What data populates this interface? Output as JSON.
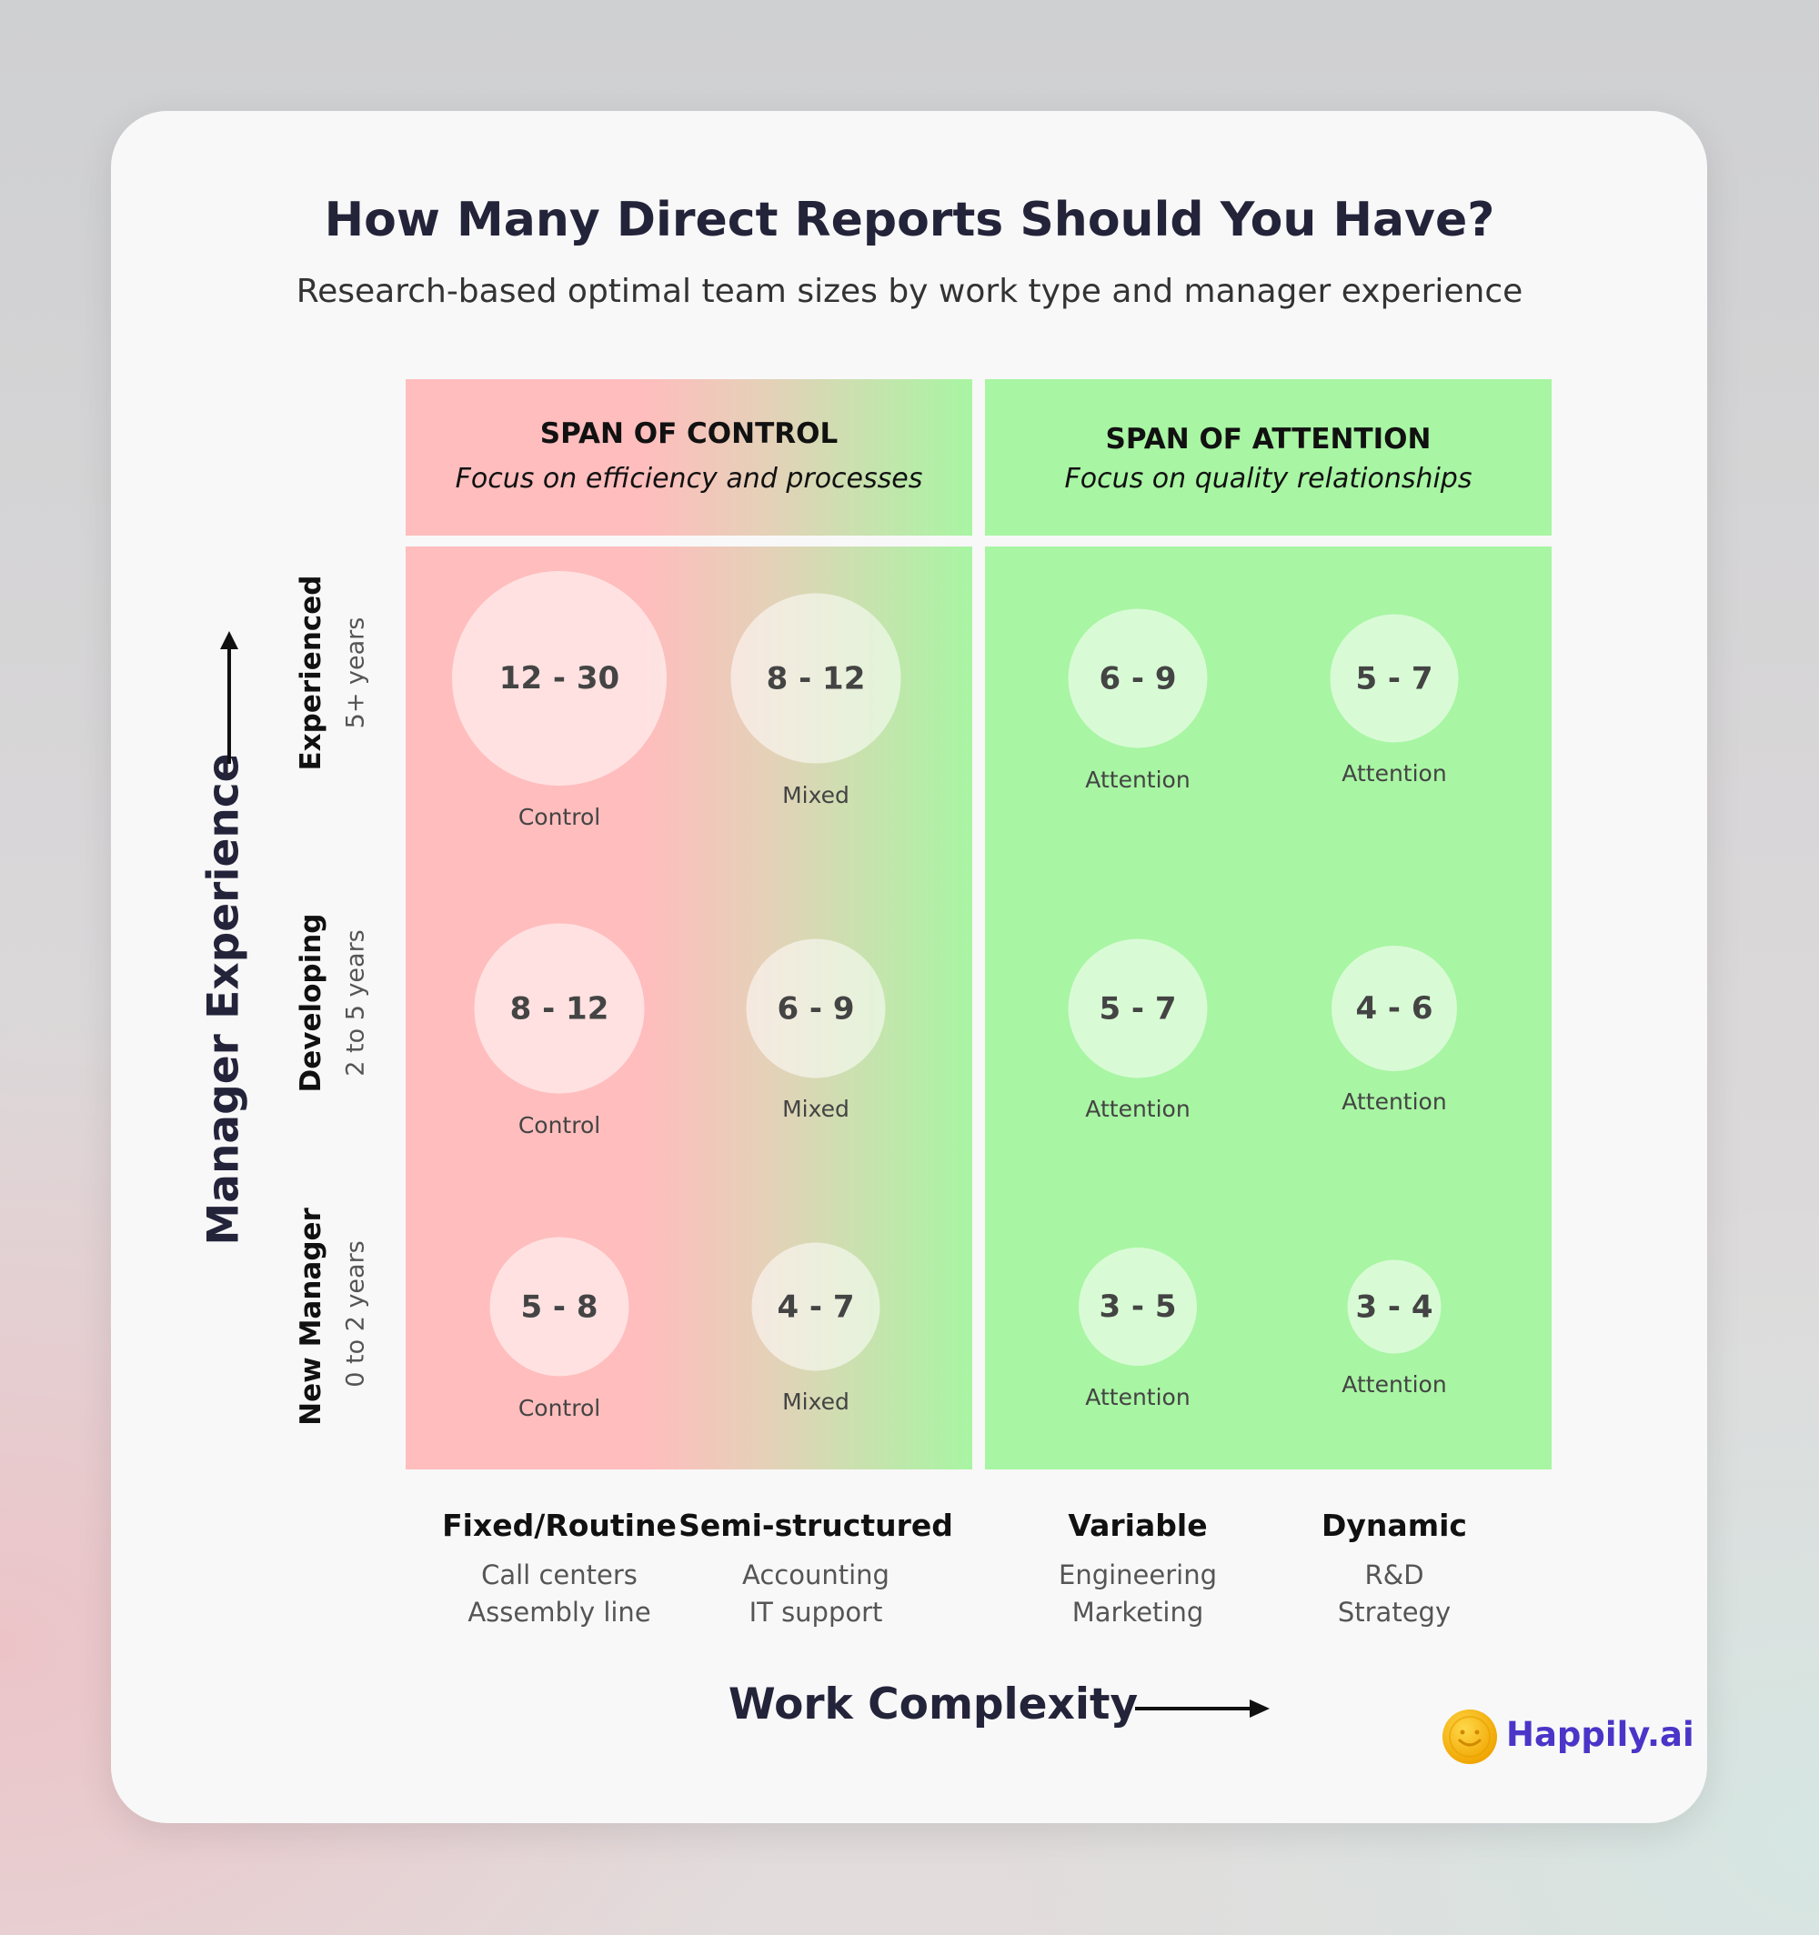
{
  "title": "How Many Direct Reports Should You Have?",
  "subtitle": "Research-based optimal team sizes by work type and manager experience",
  "sections": [
    {
      "title": "SPAN OF CONTROL",
      "subtitle": "Focus on efficiency and processes",
      "color": "#ffbdbd"
    },
    {
      "title": "SPAN OF ATTENTION",
      "subtitle": "Focus on quality relationships",
      "color": "#a8f5a3"
    }
  ],
  "y_axis": {
    "label": "Manager Experience",
    "rows": [
      {
        "title": "Experienced",
        "sub": "5+ years"
      },
      {
        "title": "Developing",
        "sub": "2 to 5 years"
      },
      {
        "title": "New Manager",
        "sub": "0 to 2 years"
      }
    ]
  },
  "x_axis": {
    "label": "Work Complexity",
    "columns": [
      {
        "title": "Fixed/Routine",
        "examples": [
          "Call centers",
          "Assembly line"
        ]
      },
      {
        "title": "Semi-structured",
        "examples": [
          "Accounting",
          "IT support"
        ]
      },
      {
        "title": "Variable",
        "examples": [
          "Engineering",
          "Marketing"
        ]
      },
      {
        "title": "Dynamic",
        "examples": [
          "R&D",
          "Strategy"
        ]
      }
    ]
  },
  "cells": [
    [
      {
        "range": "12 - 30",
        "type": "Control"
      },
      {
        "range": "8 - 12",
        "type": "Mixed"
      },
      {
        "range": "6 - 9",
        "type": "Attention"
      },
      {
        "range": "5 - 7",
        "type": "Attention"
      }
    ],
    [
      {
        "range": "8 - 12",
        "type": "Control"
      },
      {
        "range": "6 - 9",
        "type": "Mixed"
      },
      {
        "range": "5 - 7",
        "type": "Attention"
      },
      {
        "range": "4 - 6",
        "type": "Attention"
      }
    ],
    [
      {
        "range": "5 - 8",
        "type": "Control"
      },
      {
        "range": "4 - 7",
        "type": "Mixed"
      },
      {
        "range": "3 - 5",
        "type": "Attention"
      },
      {
        "range": "3 - 4",
        "type": "Attention"
      }
    ]
  ],
  "logo": {
    "text": "Happily.ai",
    "color": "#4a35c8"
  }
}
